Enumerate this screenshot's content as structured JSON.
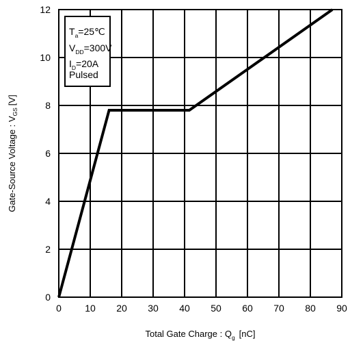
{
  "chart_data": {
    "type": "line",
    "xlabel": "Total Gate Charge : Q",
    "xlabel_sub": "g",
    "xlabel_unit": "[nC]",
    "ylabel": "Gate-Source Voltage : V",
    "ylabel_sub": "GS",
    "ylabel_unit": "[V]",
    "xlim": [
      0,
      90
    ],
    "ylim": [
      0,
      12
    ],
    "xticks": [
      0,
      10,
      20,
      30,
      40,
      50,
      60,
      70,
      80,
      90
    ],
    "yticks": [
      0,
      2,
      4,
      6,
      8,
      10,
      12
    ],
    "grid": true,
    "series": [
      {
        "x": [
          0,
          16,
          41.5,
          87
        ],
        "y": [
          0,
          7.8,
          7.8,
          12
        ]
      }
    ],
    "annotations": [
      {
        "text": "T",
        "sub": "a",
        "rest": "=25℃"
      },
      {
        "text": "V",
        "sub": "DD",
        "rest": "=300V"
      },
      {
        "text": "I",
        "sub": "D",
        "rest": "=20A"
      },
      {
        "text": "Pulsed",
        "sub": "",
        "rest": ""
      }
    ]
  }
}
